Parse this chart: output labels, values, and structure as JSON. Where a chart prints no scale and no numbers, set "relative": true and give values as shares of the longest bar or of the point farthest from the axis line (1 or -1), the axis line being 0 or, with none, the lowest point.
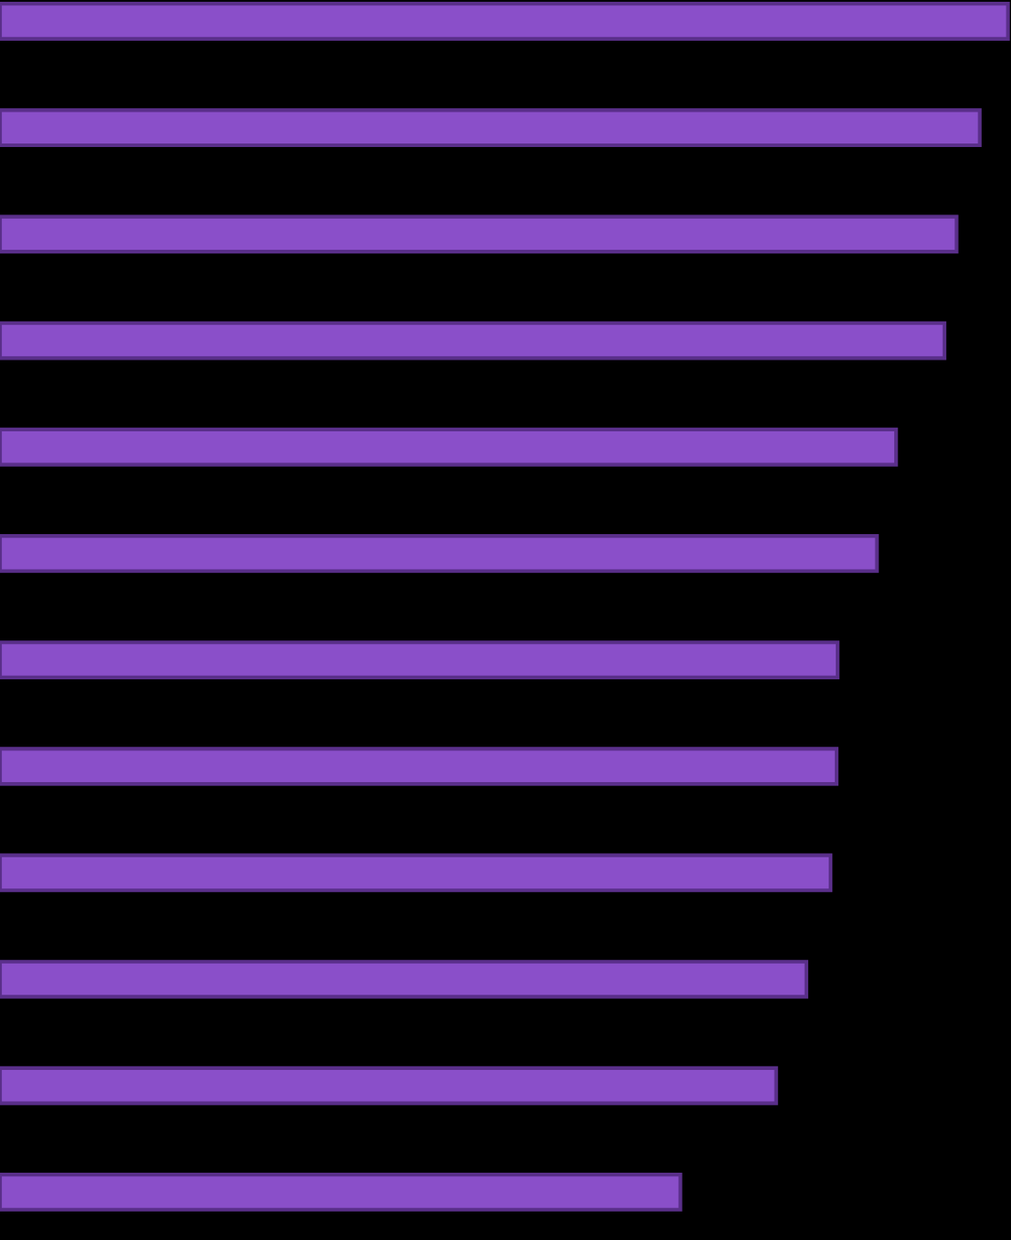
{
  "chart_data": {
    "type": "bar",
    "orientation": "horizontal",
    "relative": true,
    "categories": [
      null,
      null,
      null,
      null,
      null,
      null,
      null,
      null,
      null,
      null,
      null,
      null
    ],
    "values": [
      1,
      0.972,
      0.949,
      0.937,
      0.889,
      0.87,
      0.831,
      0.83,
      0.824,
      0.8,
      0.77,
      0.675
    ],
    "color": "#8a4fc9"
  }
}
